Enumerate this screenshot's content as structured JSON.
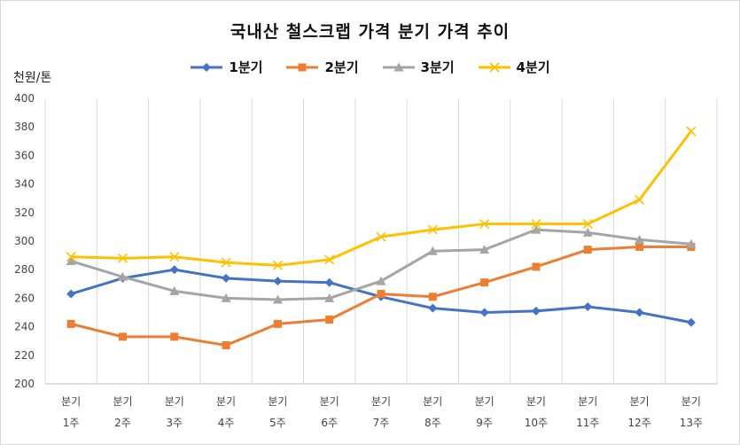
{
  "chart_data": {
    "type": "line",
    "title": "국내산 철스크랩 가격 분기 가격 추이",
    "ylabel": "천원/톤",
    "xlabel": "",
    "ylim": [
      200,
      400
    ],
    "yticks": [
      200,
      220,
      240,
      260,
      280,
      300,
      320,
      340,
      360,
      380,
      400
    ],
    "categories": [
      [
        "분기",
        "1주"
      ],
      [
        "분기",
        "2주"
      ],
      [
        "분기",
        "3주"
      ],
      [
        "분기",
        "4주"
      ],
      [
        "분기",
        "5주"
      ],
      [
        "분기",
        "6주"
      ],
      [
        "분기",
        "7주"
      ],
      [
        "분기",
        "8주"
      ],
      [
        "분기",
        "9주"
      ],
      [
        "분기",
        "10주"
      ],
      [
        "분기",
        "11주"
      ],
      [
        "분기",
        "12주"
      ],
      [
        "분기",
        "13주"
      ]
    ],
    "grid": "vertical",
    "legend_position": "top",
    "series": [
      {
        "name": "1분기",
        "color": "#4472c4",
        "marker": "diamond",
        "values": [
          263,
          274,
          280,
          274,
          272,
          271,
          261,
          253,
          250,
          251,
          254,
          250,
          243
        ]
      },
      {
        "name": "2분기",
        "color": "#ed7d31",
        "marker": "square",
        "values": [
          242,
          233,
          233,
          227,
          242,
          245,
          263,
          261,
          271,
          282,
          294,
          296,
          296
        ]
      },
      {
        "name": "3분기",
        "color": "#a5a5a5",
        "marker": "triangle",
        "values": [
          286,
          275,
          265,
          260,
          259,
          260,
          272,
          293,
          294,
          308,
          306,
          301,
          298
        ]
      },
      {
        "name": "4분기",
        "color": "#ffc000",
        "marker": "x",
        "values": [
          289,
          288,
          289,
          285,
          283,
          287,
          303,
          308,
          312,
          312,
          312,
          329,
          377
        ]
      }
    ]
  }
}
